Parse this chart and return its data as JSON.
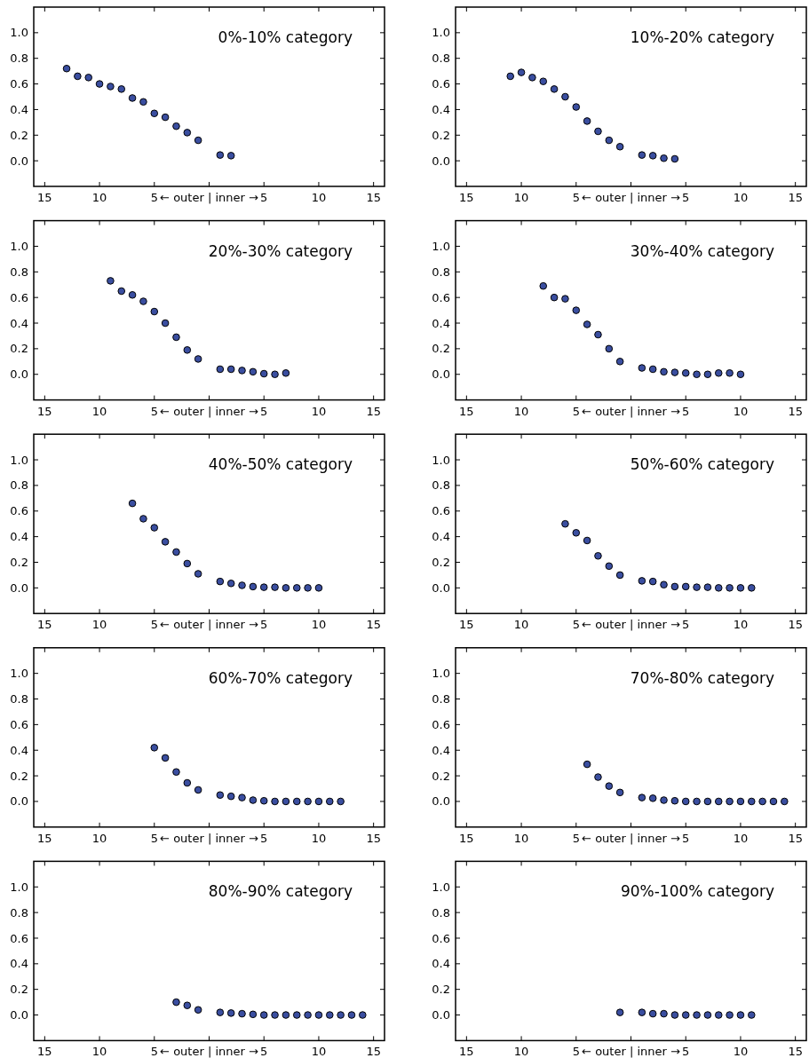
{
  "chart_data": [
    {
      "type": "scatter",
      "title": "0%-10% category",
      "x": [
        -13,
        -12,
        -11,
        -10,
        -9,
        -8,
        -7,
        -6,
        -5,
        -4,
        -3,
        -2,
        -1,
        1,
        2
      ],
      "values": [
        0.72,
        0.66,
        0.65,
        0.6,
        0.58,
        0.56,
        0.49,
        0.46,
        0.37,
        0.34,
        0.27,
        0.22,
        0.16,
        0.045,
        0.04
      ],
      "color": "#3a4ea0",
      "marker": "circle",
      "xlim": [
        -16,
        16
      ],
      "ylim": [
        -0.2,
        1.2
      ],
      "xticks": [
        {
          "value": -15,
          "label": "15"
        },
        {
          "value": -10,
          "label": "10"
        },
        {
          "value": -5,
          "label": "5"
        },
        {
          "value": 0,
          "label": "← outer | inner →"
        },
        {
          "value": 5,
          "label": "5"
        },
        {
          "value": 10,
          "label": "10"
        },
        {
          "value": 15,
          "label": "15"
        }
      ],
      "yticks": [
        {
          "value": 0,
          "label": "0.0"
        },
        {
          "value": 0.2,
          "label": "0.2"
        },
        {
          "value": 0.4,
          "label": "0.4"
        },
        {
          "value": 0.6,
          "label": "0.6"
        },
        {
          "value": 0.8,
          "label": "0.8"
        },
        {
          "value": 1,
          "label": "1.0"
        }
      ]
    },
    {
      "type": "scatter",
      "title": "10%-20% category",
      "x": [
        -11,
        -10,
        -9,
        -8,
        -7,
        -6,
        -5,
        -4,
        -3,
        -2,
        -1,
        1,
        2,
        3,
        4
      ],
      "values": [
        0.66,
        0.69,
        0.65,
        0.62,
        0.56,
        0.5,
        0.42,
        0.31,
        0.23,
        0.16,
        0.11,
        0.045,
        0.04,
        0.02,
        0.015
      ],
      "color": "#3a4ea0",
      "marker": "circle",
      "xlim": [
        -16,
        16
      ],
      "ylim": [
        -0.2,
        1.2
      ],
      "xticks": [
        {
          "value": -15,
          "label": "15"
        },
        {
          "value": -10,
          "label": "10"
        },
        {
          "value": -5,
          "label": "5"
        },
        {
          "value": 0,
          "label": "← outer | inner →"
        },
        {
          "value": 5,
          "label": "5"
        },
        {
          "value": 10,
          "label": "10"
        },
        {
          "value": 15,
          "label": "15"
        }
      ],
      "yticks": [
        {
          "value": 0,
          "label": "0.0"
        },
        {
          "value": 0.2,
          "label": "0.2"
        },
        {
          "value": 0.4,
          "label": "0.4"
        },
        {
          "value": 0.6,
          "label": "0.6"
        },
        {
          "value": 0.8,
          "label": "0.8"
        },
        {
          "value": 1,
          "label": "1.0"
        }
      ]
    },
    {
      "type": "scatter",
      "title": "20%-30% category",
      "x": [
        -9,
        -8,
        -7,
        -6,
        -5,
        -4,
        -3,
        -2,
        -1,
        1,
        2,
        3,
        4,
        5,
        6,
        7
      ],
      "values": [
        0.73,
        0.65,
        0.62,
        0.57,
        0.49,
        0.4,
        0.29,
        0.19,
        0.12,
        0.04,
        0.04,
        0.03,
        0.02,
        0.005,
        0.0,
        0.01
      ],
      "color": "#3a4ea0",
      "marker": "circle",
      "xlim": [
        -16,
        16
      ],
      "ylim": [
        -0.2,
        1.2
      ],
      "xticks": [
        {
          "value": -15,
          "label": "15"
        },
        {
          "value": -10,
          "label": "10"
        },
        {
          "value": -5,
          "label": "5"
        },
        {
          "value": 0,
          "label": "← outer | inner →"
        },
        {
          "value": 5,
          "label": "5"
        },
        {
          "value": 10,
          "label": "10"
        },
        {
          "value": 15,
          "label": "15"
        }
      ],
      "yticks": [
        {
          "value": 0,
          "label": "0.0"
        },
        {
          "value": 0.2,
          "label": "0.2"
        },
        {
          "value": 0.4,
          "label": "0.4"
        },
        {
          "value": 0.6,
          "label": "0.6"
        },
        {
          "value": 0.8,
          "label": "0.8"
        },
        {
          "value": 1,
          "label": "1.0"
        }
      ]
    },
    {
      "type": "scatter",
      "title": "30%-40% category",
      "x": [
        -8,
        -7,
        -6,
        -5,
        -4,
        -3,
        -2,
        -1,
        1,
        2,
        3,
        4,
        5,
        6,
        7,
        8,
        9,
        10
      ],
      "values": [
        0.69,
        0.6,
        0.59,
        0.5,
        0.39,
        0.31,
        0.2,
        0.1,
        0.05,
        0.04,
        0.02,
        0.015,
        0.01,
        0.0,
        0.0,
        0.01,
        0.01,
        0.0
      ],
      "color": "#3a4ea0",
      "marker": "circle",
      "xlim": [
        -16,
        16
      ],
      "ylim": [
        -0.2,
        1.2
      ],
      "xticks": [
        {
          "value": -15,
          "label": "15"
        },
        {
          "value": -10,
          "label": "10"
        },
        {
          "value": -5,
          "label": "5"
        },
        {
          "value": 0,
          "label": "← outer | inner →"
        },
        {
          "value": 5,
          "label": "5"
        },
        {
          "value": 10,
          "label": "10"
        },
        {
          "value": 15,
          "label": "15"
        }
      ],
      "yticks": [
        {
          "value": 0,
          "label": "0.0"
        },
        {
          "value": 0.2,
          "label": "0.2"
        },
        {
          "value": 0.4,
          "label": "0.4"
        },
        {
          "value": 0.6,
          "label": "0.6"
        },
        {
          "value": 0.8,
          "label": "0.8"
        },
        {
          "value": 1,
          "label": "1.0"
        }
      ]
    },
    {
      "type": "scatter",
      "title": "40%-50% category",
      "x": [
        -7,
        -6,
        -5,
        -4,
        -3,
        -2,
        -1,
        1,
        2,
        3,
        4,
        5,
        6,
        7,
        8,
        9,
        10
      ],
      "values": [
        0.66,
        0.54,
        0.47,
        0.36,
        0.28,
        0.19,
        0.11,
        0.05,
        0.035,
        0.02,
        0.01,
        0.005,
        0.005,
        0.0,
        0.0,
        0.0,
        0.0
      ],
      "color": "#3a4ea0",
      "marker": "circle",
      "xlim": [
        -16,
        16
      ],
      "ylim": [
        -0.2,
        1.2
      ],
      "xticks": [
        {
          "value": -15,
          "label": "15"
        },
        {
          "value": -10,
          "label": "10"
        },
        {
          "value": -5,
          "label": "5"
        },
        {
          "value": 0,
          "label": "← outer | inner →"
        },
        {
          "value": 5,
          "label": "5"
        },
        {
          "value": 10,
          "label": "10"
        },
        {
          "value": 15,
          "label": "15"
        }
      ],
      "yticks": [
        {
          "value": 0,
          "label": "0.0"
        },
        {
          "value": 0.2,
          "label": "0.2"
        },
        {
          "value": 0.4,
          "label": "0.4"
        },
        {
          "value": 0.6,
          "label": "0.6"
        },
        {
          "value": 0.8,
          "label": "0.8"
        },
        {
          "value": 1,
          "label": "1.0"
        }
      ]
    },
    {
      "type": "scatter",
      "title": "50%-60% category",
      "x": [
        -6,
        -5,
        -4,
        -3,
        -2,
        -1,
        1,
        2,
        3,
        4,
        5,
        6,
        7,
        8,
        9,
        10,
        11
      ],
      "values": [
        0.5,
        0.43,
        0.37,
        0.25,
        0.17,
        0.1,
        0.055,
        0.05,
        0.025,
        0.01,
        0.01,
        0.005,
        0.005,
        0.0,
        0.0,
        0.0,
        0.0
      ],
      "color": "#3a4ea0",
      "marker": "circle",
      "xlim": [
        -16,
        16
      ],
      "ylim": [
        -0.2,
        1.2
      ],
      "xticks": [
        {
          "value": -15,
          "label": "15"
        },
        {
          "value": -10,
          "label": "10"
        },
        {
          "value": -5,
          "label": "5"
        },
        {
          "value": 0,
          "label": "← outer | inner →"
        },
        {
          "value": 5,
          "label": "5"
        },
        {
          "value": 10,
          "label": "10"
        },
        {
          "value": 15,
          "label": "15"
        }
      ],
      "yticks": [
        {
          "value": 0,
          "label": "0.0"
        },
        {
          "value": 0.2,
          "label": "0.2"
        },
        {
          "value": 0.4,
          "label": "0.4"
        },
        {
          "value": 0.6,
          "label": "0.6"
        },
        {
          "value": 0.8,
          "label": "0.8"
        },
        {
          "value": 1,
          "label": "1.0"
        }
      ]
    },
    {
      "type": "scatter",
      "title": "60%-70% category",
      "x": [
        -5,
        -4,
        -3,
        -2,
        -1,
        1,
        2,
        3,
        4,
        5,
        6,
        7,
        8,
        9,
        10,
        11,
        12
      ],
      "values": [
        0.42,
        0.34,
        0.23,
        0.145,
        0.09,
        0.05,
        0.04,
        0.03,
        0.01,
        0.005,
        0.0,
        0.0,
        0.0,
        0.0,
        0.0,
        0.0,
        0.0
      ],
      "color": "#3a4ea0",
      "marker": "circle",
      "xlim": [
        -16,
        16
      ],
      "ylim": [
        -0.2,
        1.2
      ],
      "xticks": [
        {
          "value": -15,
          "label": "15"
        },
        {
          "value": -10,
          "label": "10"
        },
        {
          "value": -5,
          "label": "5"
        },
        {
          "value": 0,
          "label": "← outer | inner →"
        },
        {
          "value": 5,
          "label": "5"
        },
        {
          "value": 10,
          "label": "10"
        },
        {
          "value": 15,
          "label": "15"
        }
      ],
      "yticks": [
        {
          "value": 0,
          "label": "0.0"
        },
        {
          "value": 0.2,
          "label": "0.2"
        },
        {
          "value": 0.4,
          "label": "0.4"
        },
        {
          "value": 0.6,
          "label": "0.6"
        },
        {
          "value": 0.8,
          "label": "0.8"
        },
        {
          "value": 1,
          "label": "1.0"
        }
      ]
    },
    {
      "type": "scatter",
      "title": "70%-80% category",
      "x": [
        -4,
        -3,
        -2,
        -1,
        1,
        2,
        3,
        4,
        5,
        6,
        7,
        8,
        9,
        10,
        11,
        12,
        13,
        14
      ],
      "values": [
        0.29,
        0.19,
        0.12,
        0.07,
        0.03,
        0.025,
        0.01,
        0.005,
        0.0,
        0.0,
        0.0,
        0.0,
        0.0,
        0.0,
        0.0,
        0.0,
        0.0,
        0.0
      ],
      "color": "#3a4ea0",
      "marker": "circle",
      "xlim": [
        -16,
        16
      ],
      "ylim": [
        -0.2,
        1.2
      ],
      "xticks": [
        {
          "value": -15,
          "label": "15"
        },
        {
          "value": -10,
          "label": "10"
        },
        {
          "value": -5,
          "label": "5"
        },
        {
          "value": 0,
          "label": "← outer | inner →"
        },
        {
          "value": 5,
          "label": "5"
        },
        {
          "value": 10,
          "label": "10"
        },
        {
          "value": 15,
          "label": "15"
        }
      ],
      "yticks": [
        {
          "value": 0,
          "label": "0.0"
        },
        {
          "value": 0.2,
          "label": "0.2"
        },
        {
          "value": 0.4,
          "label": "0.4"
        },
        {
          "value": 0.6,
          "label": "0.6"
        },
        {
          "value": 0.8,
          "label": "0.8"
        },
        {
          "value": 1,
          "label": "1.0"
        }
      ]
    },
    {
      "type": "scatter",
      "title": "80%-90% category",
      "x": [
        -3,
        -2,
        -1,
        1,
        2,
        3,
        4,
        5,
        6,
        7,
        8,
        9,
        10,
        11,
        12,
        13,
        14
      ],
      "values": [
        0.1,
        0.075,
        0.04,
        0.02,
        0.015,
        0.01,
        0.005,
        0.0,
        0.0,
        0.0,
        0.0,
        0.0,
        0.0,
        0.0,
        0.0,
        0.0,
        0.0
      ],
      "color": "#3a4ea0",
      "marker": "circle",
      "xlim": [
        -16,
        16
      ],
      "ylim": [
        -0.2,
        1.2
      ],
      "xticks": [
        {
          "value": -15,
          "label": "15"
        },
        {
          "value": -10,
          "label": "10"
        },
        {
          "value": -5,
          "label": "5"
        },
        {
          "value": 0,
          "label": "← outer | inner →"
        },
        {
          "value": 5,
          "label": "5"
        },
        {
          "value": 10,
          "label": "10"
        },
        {
          "value": 15,
          "label": "15"
        }
      ],
      "yticks": [
        {
          "value": 0,
          "label": "0.0"
        },
        {
          "value": 0.2,
          "label": "0.2"
        },
        {
          "value": 0.4,
          "label": "0.4"
        },
        {
          "value": 0.6,
          "label": "0.6"
        },
        {
          "value": 0.8,
          "label": "0.8"
        },
        {
          "value": 1,
          "label": "1.0"
        }
      ]
    },
    {
      "type": "scatter",
      "title": "90%-100% category",
      "x": [
        -1,
        1,
        2,
        3,
        4,
        5,
        6,
        7,
        8,
        9,
        10,
        11
      ],
      "values": [
        0.02,
        0.02,
        0.01,
        0.01,
        0.0,
        0.0,
        0.0,
        0.0,
        0.0,
        0.0,
        0.0,
        0.0
      ],
      "color": "#3a4ea0",
      "marker": "circle",
      "xlim": [
        -16,
        16
      ],
      "ylim": [
        -0.2,
        1.2
      ],
      "xticks": [
        {
          "value": -15,
          "label": "15"
        },
        {
          "value": -10,
          "label": "10"
        },
        {
          "value": -5,
          "label": "5"
        },
        {
          "value": 0,
          "label": "← outer | inner →"
        },
        {
          "value": 5,
          "label": "5"
        },
        {
          "value": 10,
          "label": "10"
        },
        {
          "value": 15,
          "label": "15"
        }
      ],
      "yticks": [
        {
          "value": 0,
          "label": "0.0"
        },
        {
          "value": 0.2,
          "label": "0.2"
        },
        {
          "value": 0.4,
          "label": "0.4"
        },
        {
          "value": 0.6,
          "label": "0.6"
        },
        {
          "value": 0.8,
          "label": "0.8"
        },
        {
          "value": 1,
          "label": "1.0"
        }
      ]
    }
  ]
}
